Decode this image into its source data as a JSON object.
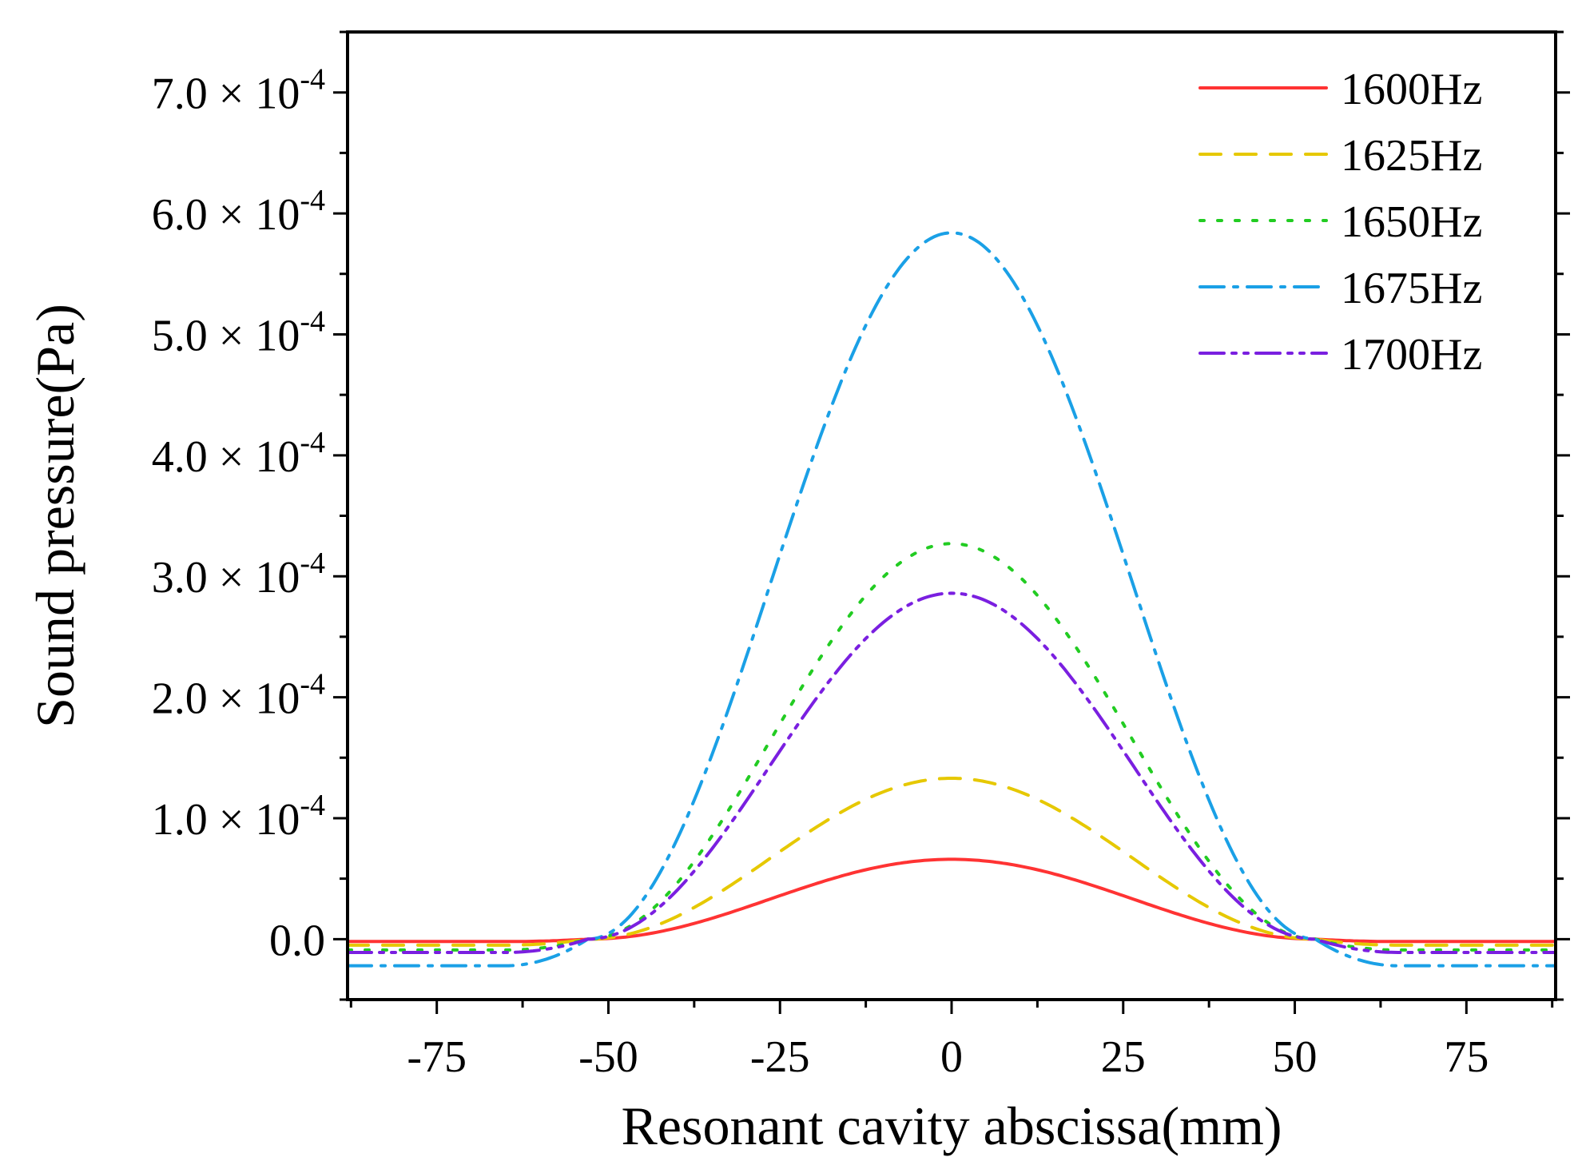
{
  "chart_data": {
    "type": "line",
    "title": "",
    "xlabel": "Resonant cavity abscissa(mm)",
    "ylabel": "Sound pressure(Pa)",
    "xlim": [
      -88,
      88
    ],
    "ylim": [
      -0.5,
      7.5
    ],
    "y_scale_note": "values in units of 1e-4 Pa",
    "x_ticks": [
      {
        "value": -75,
        "label": "-75"
      },
      {
        "value": -50,
        "label": "-50"
      },
      {
        "value": -25,
        "label": "-25"
      },
      {
        "value": 0,
        "label": "0"
      },
      {
        "value": 25,
        "label": "25"
      },
      {
        "value": 50,
        "label": "50"
      },
      {
        "value": 75,
        "label": "75"
      }
    ],
    "y_ticks": [
      {
        "value": 0,
        "label": "0.0",
        "exp": ""
      },
      {
        "value": 1,
        "label": "1.0 × 10",
        "exp": "-4"
      },
      {
        "value": 2,
        "label": "2.0 × 10",
        "exp": "-4"
      },
      {
        "value": 3,
        "label": "3.0 × 10",
        "exp": "-4"
      },
      {
        "value": 4,
        "label": "4.0 × 10",
        "exp": "-4"
      },
      {
        "value": 5,
        "label": "5.0 × 10",
        "exp": "-4"
      },
      {
        "value": 6,
        "label": "6.0 × 10",
        "exp": "-4"
      },
      {
        "value": 7,
        "label": "7.0 × 10",
        "exp": "-4"
      }
    ],
    "legend_position": "top-right",
    "series": [
      {
        "name": "1600Hz",
        "color": "#ff3333",
        "style": "solid",
        "peak": 0.66,
        "edge": -0.02
      },
      {
        "name": "1625Hz",
        "color": "#e6c800",
        "style": "dash",
        "peak": 1.33,
        "edge": -0.05
      },
      {
        "name": "1650Hz",
        "color": "#22cc22",
        "style": "dot",
        "peak": 3.27,
        "edge": -0.09
      },
      {
        "name": "1675Hz",
        "color": "#1aa0e6",
        "style": "dashdot",
        "peak": 5.84,
        "edge": -0.22
      },
      {
        "name": "1700Hz",
        "color": "#7a1fe0",
        "style": "dashdotdot",
        "peak": 2.86,
        "edge": -0.11
      }
    ],
    "cavity_half_width": 53
  }
}
